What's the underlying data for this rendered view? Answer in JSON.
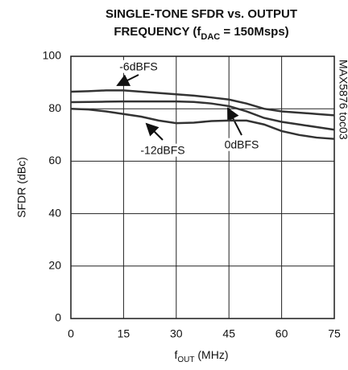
{
  "chart_data": {
    "type": "line",
    "title_lines": [
      [
        "SINGLE-TONE SFDR vs. OUTPUT"
      ],
      [
        "FREQUENCY (f",
        "DAC",
        " = 150Msps)"
      ]
    ],
    "xlabel": [
      "f",
      "OUT",
      " (MHz)"
    ],
    "ylabel": "SFDR (dBc)",
    "side_note": "MAX5876 toc03",
    "x": [
      0,
      5,
      10,
      15,
      20,
      25,
      30,
      35,
      40,
      45,
      50,
      55,
      60,
      65,
      70,
      75
    ],
    "series": [
      {
        "name": "-6dBFS",
        "color": "#333333",
        "values": [
          86.5,
          86.7,
          87,
          87,
          86.5,
          86,
          85.5,
          85,
          84.3,
          83.5,
          82,
          80,
          79,
          78.5,
          78,
          77.5
        ]
      },
      {
        "name": "0dBFS",
        "color": "#333333",
        "values": [
          82.5,
          82.6,
          82.7,
          82.8,
          82.8,
          82.8,
          82.8,
          82.6,
          82,
          81,
          79,
          76.5,
          75,
          74,
          73,
          72
        ]
      },
      {
        "name": "-12dBFS",
        "color": "#333333",
        "values": [
          80,
          79.7,
          79,
          78,
          77,
          75.5,
          74.5,
          74.7,
          75.3,
          75.5,
          75.5,
          74,
          71.5,
          70,
          69,
          68.5
        ]
      }
    ],
    "xlim": [
      0,
      75
    ],
    "xticks": [
      0,
      15,
      30,
      45,
      60,
      75
    ],
    "ylim": [
      0,
      100
    ],
    "yticks": [
      0,
      20,
      40,
      60,
      80,
      100
    ],
    "grid": true
  }
}
